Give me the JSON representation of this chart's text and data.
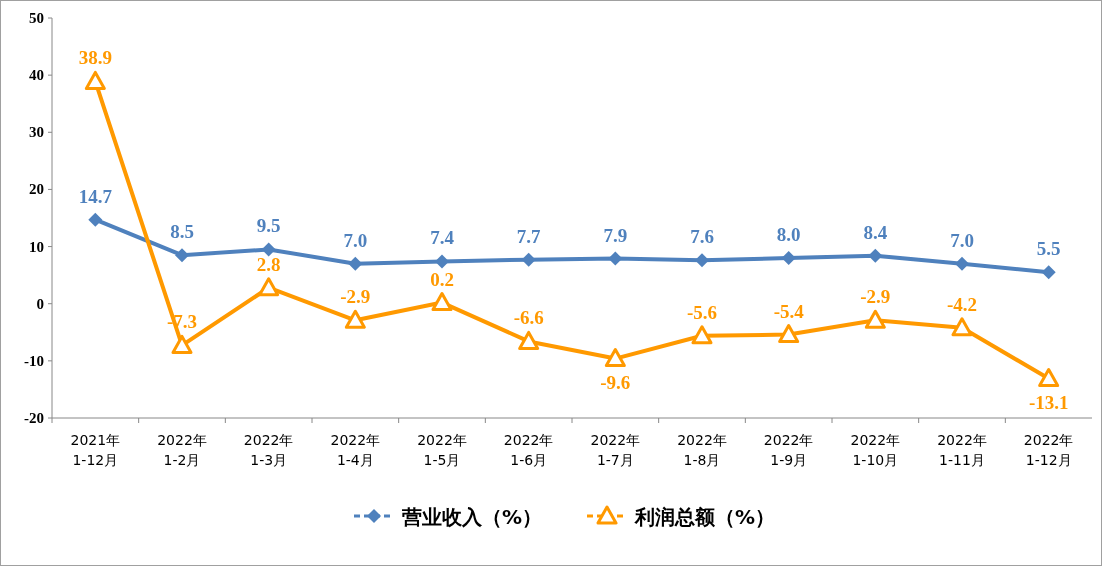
{
  "chart_data": {
    "type": "line",
    "categories": [
      "2021年\n1-12月",
      "2022年\n1-2月",
      "2022年\n1-3月",
      "2022年\n1-4月",
      "2022年\n1-5月",
      "2022年\n1-6月",
      "2022年\n1-7月",
      "2022年\n1-8月",
      "2022年\n1-9月",
      "2022年\n1-10月",
      "2022年\n1-11月",
      "2022年\n1-12月"
    ],
    "series": [
      {
        "name": "营业收入（%）",
        "color": "#4f81bd",
        "marker": "diamond",
        "values": [
          14.7,
          8.5,
          9.5,
          7.0,
          7.4,
          7.7,
          7.9,
          7.6,
          8.0,
          8.4,
          7.0,
          5.5
        ],
        "value_labels": [
          "14.7",
          "8.5",
          "9.5",
          "7.0",
          "7.4",
          "7.7",
          "7.9",
          "7.6",
          "8.0",
          "8.4",
          "7.0",
          "5.5"
        ]
      },
      {
        "name": "利润总额（%）",
        "color": "#ff9900",
        "marker": "triangle",
        "values": [
          38.9,
          -7.3,
          2.8,
          -2.9,
          0.2,
          -6.6,
          -9.6,
          -5.6,
          -5.4,
          -2.9,
          -4.2,
          -13.1
        ],
        "value_labels": [
          "38.9",
          "-7.3",
          "2.8",
          "-2.9",
          "0.2",
          "-6.6",
          "-9.6",
          "-5.6",
          "-5.4",
          "-2.9",
          "-4.2",
          "-13.1"
        ]
      }
    ],
    "ylim": [
      -20,
      50
    ],
    "yticks": [
      -20,
      -10,
      0,
      10,
      20,
      30,
      40,
      50
    ],
    "legend": "bottom",
    "grid": false
  }
}
